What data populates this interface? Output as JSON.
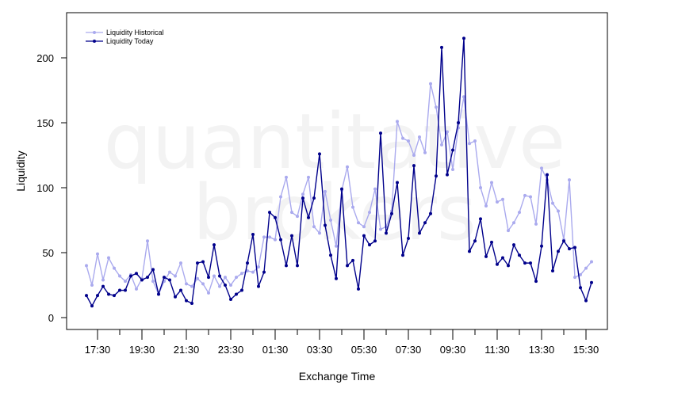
{
  "chart_data": {
    "type": "line",
    "xlabel": "Exchange Time",
    "ylabel": "Liquidity",
    "ylim": [
      0,
      220
    ],
    "y_ticks": [
      0,
      50,
      100,
      150,
      200
    ],
    "x_tick_labels": [
      "17:30",
      "19:30",
      "21:30",
      "23:30",
      "01:30",
      "03:30",
      "05:30",
      "07:30",
      "09:30",
      "11:30",
      "13:30",
      "15:30"
    ],
    "watermark": [
      "quantitative",
      "brokers"
    ],
    "legend": {
      "position": "top-left"
    },
    "x_start": "17:00",
    "x_step_minutes": 15,
    "series": [
      {
        "name": "Liquidity Historical",
        "color": "#aaaaee",
        "values": [
          40,
          25,
          49,
          29,
          46,
          38,
          32,
          28,
          33,
          22,
          30,
          59,
          28,
          18,
          28,
          35,
          32,
          42,
          26,
          24,
          30,
          26,
          19,
          32,
          24,
          31,
          25,
          31,
          34,
          36,
          35,
          39,
          62,
          62,
          60,
          93,
          108,
          81,
          78,
          95,
          108,
          70,
          65,
          97,
          75,
          55,
          98,
          116,
          85,
          73,
          70,
          81,
          99,
          68,
          70,
          82,
          151,
          138,
          136,
          125,
          139,
          127,
          180,
          162,
          133,
          143,
          114,
          146,
          170,
          134,
          136,
          100,
          86,
          104,
          89,
          91,
          67,
          73,
          81,
          94,
          93,
          72,
          115,
          106,
          88,
          82,
          60,
          106,
          31,
          33,
          38,
          43
        ]
      },
      {
        "name": "Liquidity Today",
        "color": "#00008b",
        "values": [
          17,
          9,
          17,
          24,
          18,
          17,
          21,
          21,
          32,
          34,
          29,
          31,
          37,
          18,
          31,
          29,
          16,
          21,
          13,
          11,
          42,
          43,
          31,
          56,
          32,
          25,
          14,
          18,
          21,
          42,
          64,
          24,
          35,
          81,
          77,
          60,
          40,
          63,
          40,
          92,
          77,
          92,
          126,
          71,
          48,
          30,
          99,
          40,
          44,
          22,
          63,
          56,
          59,
          142,
          65,
          80,
          104,
          48,
          61,
          117,
          65,
          73,
          80,
          109,
          208,
          110,
          129,
          150,
          215,
          51,
          59,
          76,
          47,
          58,
          41,
          46,
          40,
          56,
          48,
          42,
          42,
          28,
          55,
          110,
          36,
          51,
          59,
          53,
          54,
          23,
          13,
          27
        ]
      }
    ]
  }
}
